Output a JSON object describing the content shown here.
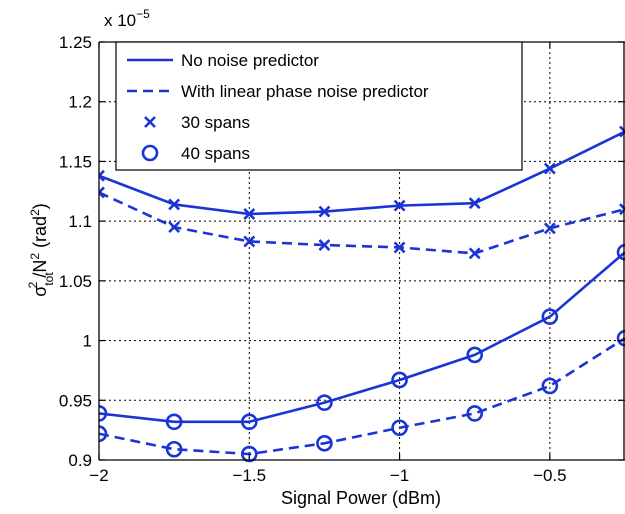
{
  "chart_data": {
    "type": "line",
    "xlabel": "Signal Power (dBm)",
    "ylabel": {
      "main": "σ",
      "sub": "tot",
      "sup": "2",
      "rest": "/N",
      "rest_sup": "2",
      "unit_open": " (rad",
      "unit_sup": "2",
      "unit_close": ")"
    },
    "exponent": {
      "base": "x 10",
      "power": "−5"
    },
    "xlim": [
      -2,
      -0.25
    ],
    "ylim": [
      0.9,
      1.25
    ],
    "xticks": [
      -2,
      -1.5,
      -1,
      -0.5
    ],
    "xtick_labels": [
      "−2",
      "−1.5",
      "−1",
      "−0.5"
    ],
    "yticks": [
      0.9,
      0.95,
      1.0,
      1.05,
      1.1,
      1.15,
      1.2,
      1.25
    ],
    "ytick_labels": [
      "0.9",
      "0.95",
      "1",
      "1.05",
      "1.1",
      "1.15",
      "1.2",
      "1.25"
    ],
    "grid": true,
    "color": "#1a34d6",
    "legend_position": "top-left",
    "legend": [
      {
        "label": "No noise predictor",
        "style": "solid-line"
      },
      {
        "label": "With linear phase noise predictor",
        "style": "dashed-line"
      },
      {
        "label": "30 spans",
        "style": "x-marker"
      },
      {
        "label": "40 spans",
        "style": "o-marker"
      }
    ],
    "x": [
      -2,
      -1.75,
      -1.5,
      -1.25,
      -1,
      -0.75,
      -0.5,
      -0.25
    ],
    "series": [
      {
        "line": "solid",
        "marker": "x",
        "values": [
          1.138,
          1.114,
          1.106,
          1.108,
          1.113,
          1.115,
          1.144,
          1.175
        ]
      },
      {
        "line": "dashed",
        "marker": "x",
        "values": [
          1.124,
          1.095,
          1.083,
          1.08,
          1.078,
          1.073,
          1.094,
          1.11
        ]
      },
      {
        "line": "solid",
        "marker": "o",
        "values": [
          0.939,
          0.932,
          0.932,
          0.948,
          0.967,
          0.988,
          1.02,
          1.074
        ]
      },
      {
        "line": "dashed",
        "marker": "o",
        "values": [
          0.922,
          0.909,
          0.905,
          0.914,
          0.927,
          0.939,
          0.962,
          1.002
        ]
      }
    ]
  }
}
